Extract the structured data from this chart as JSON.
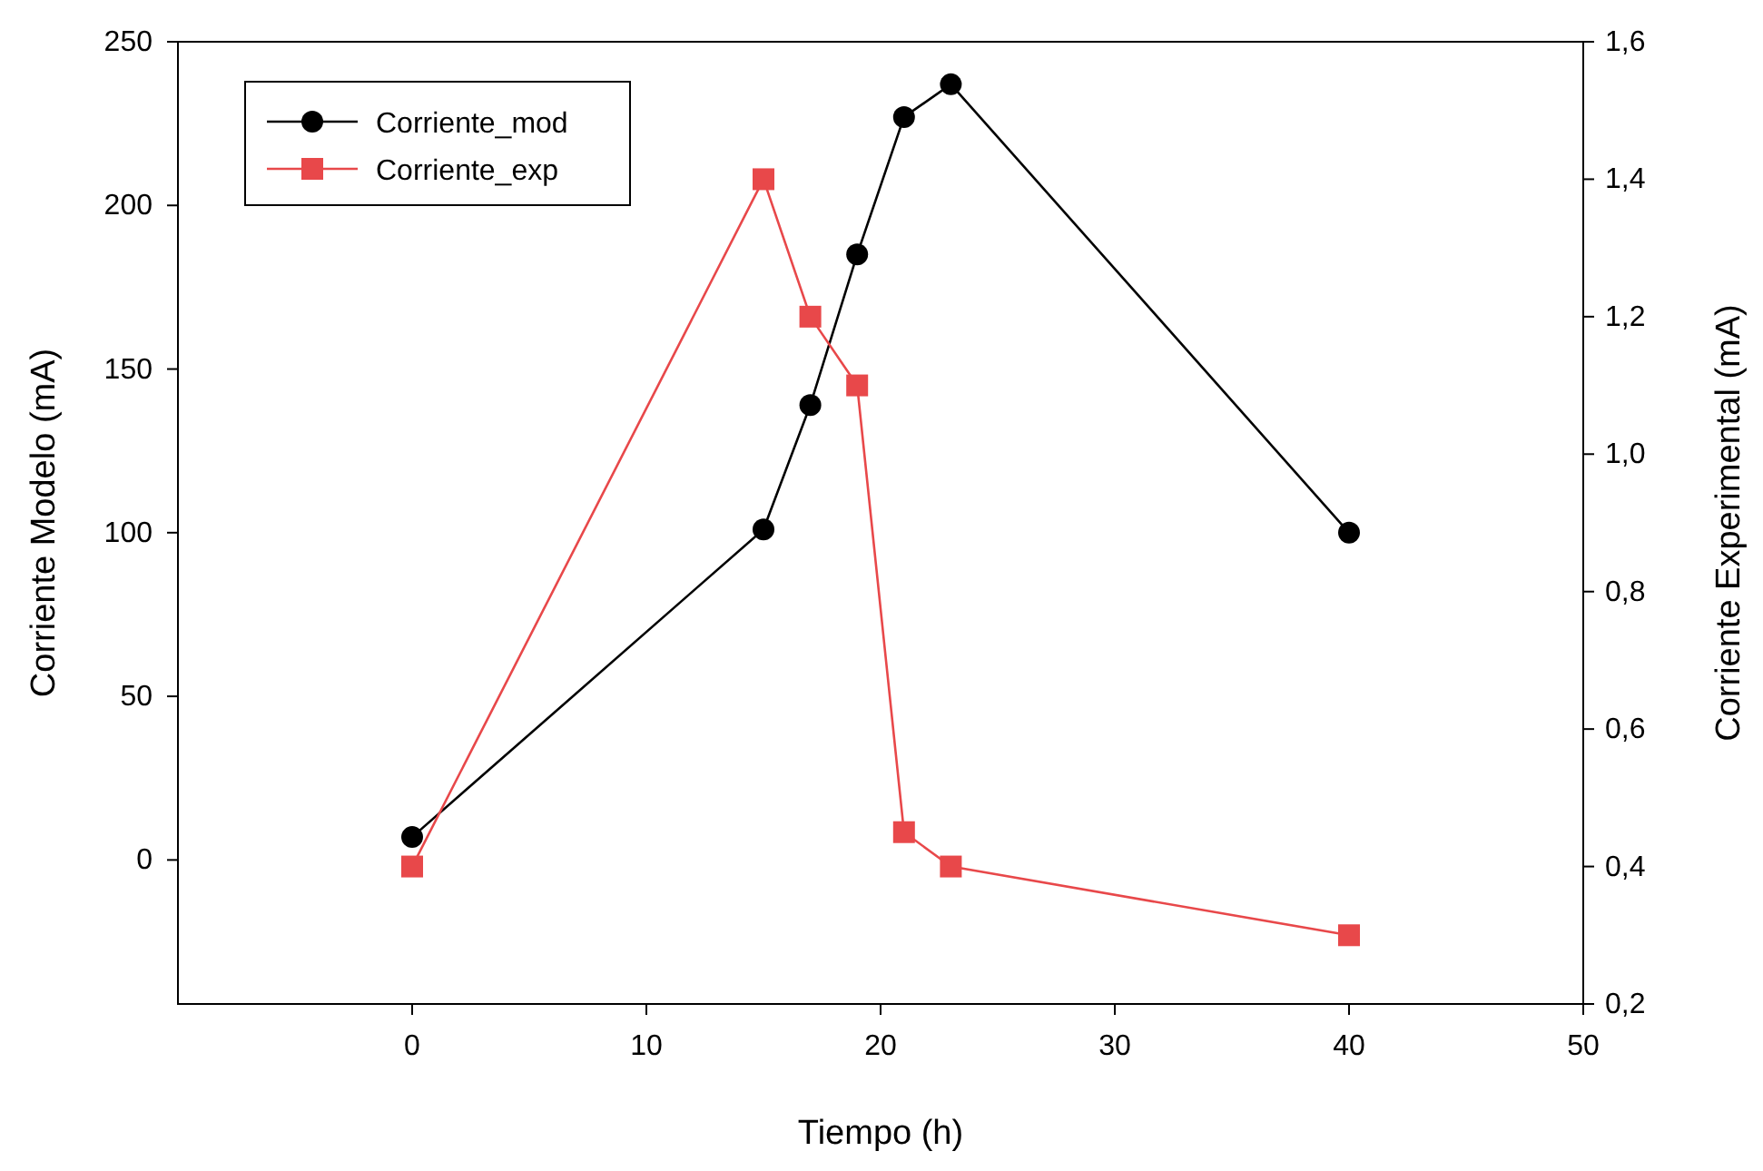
{
  "chart_data": {
    "type": "line",
    "xlabel": "Tiempo (h)",
    "ylabel": "Corriente Modelo (mA)",
    "y2label": "Corriente Experimental (mA)",
    "xlim": [
      -10,
      50
    ],
    "xticks": [
      0,
      10,
      20,
      30,
      40,
      50
    ],
    "ylim": [
      -44,
      250
    ],
    "yticks": [
      0,
      50,
      100,
      150,
      200,
      250
    ],
    "y2lim": [
      0.2,
      1.6
    ],
    "y2ticks": [
      {
        "value": 0.2,
        "label": "0,2"
      },
      {
        "value": 0.4,
        "label": "0,4"
      },
      {
        "value": 0.6,
        "label": "0,6"
      },
      {
        "value": 0.8,
        "label": "0,8"
      },
      {
        "value": 1.0,
        "label": "1,0"
      },
      {
        "value": 1.2,
        "label": "1,2"
      },
      {
        "value": 1.4,
        "label": "1,4"
      },
      {
        "value": 1.6,
        "label": "1,6"
      }
    ],
    "x": [
      0,
      15,
      17,
      19,
      21,
      23,
      40
    ],
    "series": [
      {
        "name": "Corriente_mod",
        "color": "#000000",
        "marker": "circle",
        "values": [
          7,
          101,
          139,
          185,
          227,
          237,
          100
        ]
      },
      {
        "name": "Corriente_exp",
        "color": "#e8484a",
        "marker": "square",
        "axis": "y2",
        "values": [
          0.4,
          1.4,
          1.2,
          1.1,
          0.45,
          0.4,
          0.3
        ]
      }
    ],
    "legend": "top left",
    "grid": false,
    "line_style": "solid"
  }
}
